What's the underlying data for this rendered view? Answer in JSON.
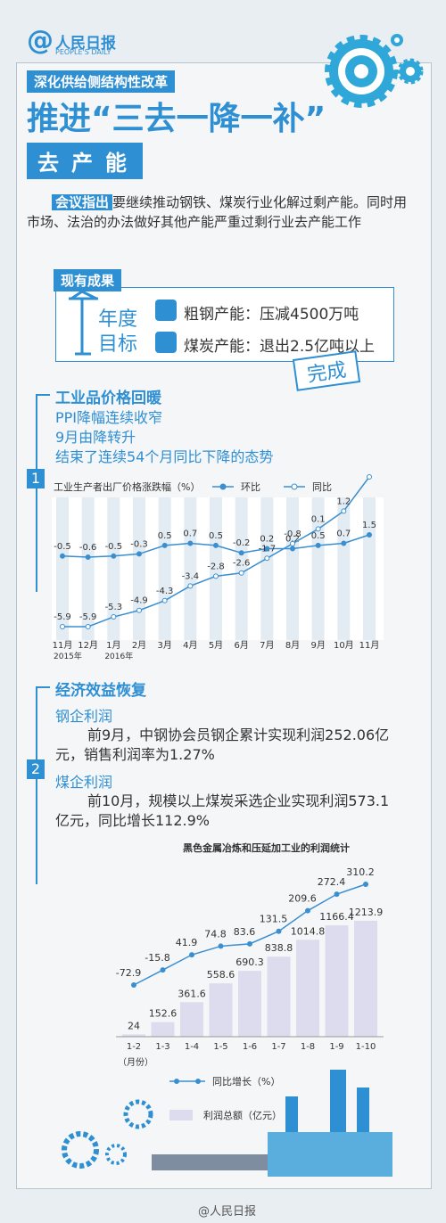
{
  "logo": {
    "name": "人民日报",
    "english": "PEOPLE'S DAILY"
  },
  "header": {
    "tag": "深化供给侧结构性改革",
    "title": "推进“三去一降一补”",
    "subtitle": "去产能"
  },
  "intro": {
    "highlight": "会议指出",
    "text": "要继续推动钢铁、煤炭行业化解过剩产能。同时用市场、法治的办法做好其他产能严重过剩行业去产能工作"
  },
  "results": {
    "title": "现有成果",
    "goal": [
      "年度",
      "目标"
    ],
    "items": [
      "粗钢产能：压减4500万吨",
      "煤炭产能：退出2.5亿吨以上"
    ],
    "stamp": "完成"
  },
  "section1": {
    "number": "1",
    "title": "工业品价格回暖",
    "lines": [
      "PPI降幅连续收窄",
      "9月由降转升",
      "结束了连续54个月同比下降的态势"
    ]
  },
  "section2": {
    "number": "2",
    "title": "经济效益恢复",
    "items": [
      {
        "heading": "钢企利润",
        "text": "前9月，中钢协会员钢企累计实现利润252.06亿元，销售利润率为1.27%"
      },
      {
        "heading": "煤企利润",
        "text": "前10月，规模以上煤炭采选企业实现利润573.1亿元，同比增长112.9%"
      }
    ]
  },
  "footer": "@人民日报",
  "chart_data": [
    {
      "type": "line",
      "title": "工业生产者出厂价格涨跌幅（%）",
      "categories": [
        "11月",
        "12月",
        "1月",
        "2月",
        "3月",
        "4月",
        "5月",
        "6月",
        "7月",
        "8月",
        "9月",
        "10月",
        "11月"
      ],
      "year_labels": [
        "2015年",
        null,
        "2016年",
        null,
        null,
        null,
        null,
        null,
        null,
        null,
        null,
        null,
        null
      ],
      "series": [
        {
          "name": "环比",
          "color": "#3a8fd0",
          "marker": "filled",
          "values": [
            -0.5,
            -0.6,
            -0.5,
            -0.3,
            0.5,
            0.7,
            0.5,
            -0.2,
            0.2,
            0.2,
            0.5,
            0.7,
            1.5
          ]
        },
        {
          "name": "同比",
          "color": "#3a8fd0",
          "marker": "hollow",
          "values": [
            -5.9,
            -5.9,
            -5.3,
            -4.9,
            -4.3,
            -3.4,
            -2.8,
            -2.6,
            -1.7,
            -0.8,
            0.1,
            1.2,
            3.3
          ]
        }
      ]
    },
    {
      "type": "bar-line",
      "title": "黑色金属冶炼和压延加工业的利润统计",
      "x_label": "（月份）",
      "categories": [
        "1-2",
        "1-3",
        "1-4",
        "1-5",
        "1-6",
        "1-7",
        "1-8",
        "1-9",
        "1-10"
      ],
      "series": [
        {
          "name": "同比增长（%）",
          "type": "line",
          "color": "#3a8fd0",
          "values": [
            -72.9,
            -15.8,
            41.9,
            74.8,
            83.6,
            131.5,
            209.6,
            272.4,
            310.2
          ]
        },
        {
          "name": "利润总额（亿元）",
          "type": "bar",
          "color": "#dcdcee",
          "values": [
            24,
            152.6,
            361.6,
            558.6,
            690.3,
            838.8,
            1014.8,
            1166.4,
            1213.9
          ]
        }
      ]
    }
  ]
}
